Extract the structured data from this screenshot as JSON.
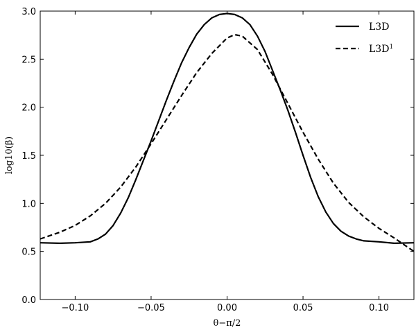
{
  "chart_data": {
    "type": "line",
    "xlabel": "θ−π/2",
    "ylabel": "log10(β)",
    "xlim": [
      -0.123,
      0.123
    ],
    "ylim": [
      0.0,
      3.0
    ],
    "x_ticks": [
      -0.1,
      -0.05,
      0.0,
      0.05,
      0.1
    ],
    "x_tick_labels": [
      "−0.10",
      "−0.05",
      "0.00",
      "0.05",
      "0.10"
    ],
    "y_ticks": [
      0.0,
      0.5,
      1.0,
      1.5,
      2.0,
      2.5,
      3.0
    ],
    "y_tick_labels": [
      "0.0",
      "0.5",
      "1.0",
      "1.5",
      "2.0",
      "2.5",
      "3.0"
    ],
    "grid": false,
    "legend_position": "top-right",
    "series": [
      {
        "name": "L3D",
        "style": "solid",
        "x": [
          -0.123,
          -0.11,
          -0.1,
          -0.09,
          -0.085,
          -0.08,
          -0.075,
          -0.07,
          -0.065,
          -0.06,
          -0.055,
          -0.05,
          -0.045,
          -0.04,
          -0.035,
          -0.03,
          -0.025,
          -0.02,
          -0.015,
          -0.01,
          -0.005,
          0.0,
          0.005,
          0.01,
          0.015,
          0.02,
          0.025,
          0.03,
          0.035,
          0.04,
          0.045,
          0.05,
          0.055,
          0.06,
          0.065,
          0.07,
          0.075,
          0.08,
          0.085,
          0.09,
          0.1,
          0.11,
          0.123
        ],
        "y": [
          0.59,
          0.585,
          0.59,
          0.6,
          0.63,
          0.68,
          0.77,
          0.9,
          1.06,
          1.25,
          1.45,
          1.65,
          1.86,
          2.07,
          2.27,
          2.46,
          2.62,
          2.76,
          2.86,
          2.93,
          2.965,
          2.975,
          2.965,
          2.93,
          2.86,
          2.74,
          2.58,
          2.38,
          2.18,
          1.97,
          1.74,
          1.5,
          1.27,
          1.07,
          0.91,
          0.79,
          0.71,
          0.66,
          0.63,
          0.61,
          0.6,
          0.585,
          0.59
        ]
      },
      {
        "name": "L3D",
        "name_sup": "1",
        "style": "dashed",
        "x": [
          -0.123,
          -0.11,
          -0.1,
          -0.09,
          -0.08,
          -0.07,
          -0.06,
          -0.05,
          -0.04,
          -0.03,
          -0.02,
          -0.01,
          0.0,
          0.005,
          0.01,
          0.02,
          0.03,
          0.04,
          0.05,
          0.06,
          0.07,
          0.08,
          0.09,
          0.1,
          0.11,
          0.123
        ],
        "y": [
          0.63,
          0.7,
          0.77,
          0.87,
          1.0,
          1.17,
          1.38,
          1.62,
          1.87,
          2.12,
          2.36,
          2.56,
          2.72,
          2.755,
          2.74,
          2.6,
          2.34,
          2.04,
          1.74,
          1.46,
          1.21,
          1.01,
          0.86,
          0.74,
          0.64,
          0.5
        ]
      }
    ]
  }
}
